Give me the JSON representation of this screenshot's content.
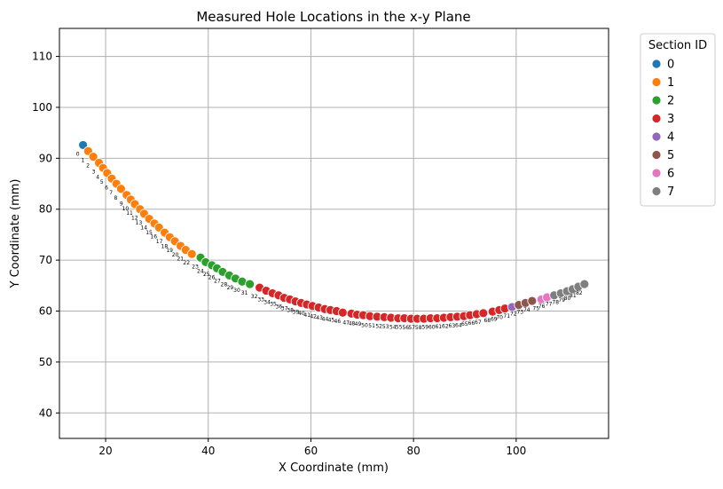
{
  "chart_data": {
    "type": "scatter",
    "title": "Measured Hole Locations in the x-y Plane",
    "xlabel": "X Coordinate (mm)",
    "ylabel": "Y Coordinate (mm)",
    "xlim": [
      11,
      118
    ],
    "ylim": [
      35,
      115.5
    ],
    "xticks": [
      20,
      40,
      60,
      80,
      100
    ],
    "yticks": [
      40,
      50,
      60,
      70,
      80,
      90,
      100,
      110
    ],
    "grid": true,
    "legend": {
      "title": "Section ID",
      "placement": "outside-top-right",
      "entries": [
        {
          "label": "0",
          "color": "#1f77b4"
        },
        {
          "label": "1",
          "color": "#ff7f0e"
        },
        {
          "label": "2",
          "color": "#2ca02c"
        },
        {
          "label": "3",
          "color": "#d62728"
        },
        {
          "label": "4",
          "color": "#9467bd"
        },
        {
          "label": "5",
          "color": "#8c564b"
        },
        {
          "label": "6",
          "color": "#e377c2"
        },
        {
          "label": "7",
          "color": "#7f7f7f"
        }
      ]
    },
    "points": [
      {
        "id": 0,
        "section": 0,
        "x": 15.6,
        "y": 92.6
      },
      {
        "id": 1,
        "section": 1,
        "x": 16.6,
        "y": 91.4
      },
      {
        "id": 2,
        "section": 1,
        "x": 17.6,
        "y": 90.3
      },
      {
        "id": 3,
        "section": 1,
        "x": 18.7,
        "y": 89.1
      },
      {
        "id": 4,
        "section": 1,
        "x": 19.5,
        "y": 88.1
      },
      {
        "id": 5,
        "section": 1,
        "x": 20.3,
        "y": 87.1
      },
      {
        "id": 6,
        "section": 1,
        "x": 21.2,
        "y": 86.0
      },
      {
        "id": 7,
        "section": 1,
        "x": 22.1,
        "y": 85.0
      },
      {
        "id": 8,
        "section": 1,
        "x": 23.0,
        "y": 84.0
      },
      {
        "id": 9,
        "section": 1,
        "x": 24.1,
        "y": 82.8
      },
      {
        "id": 10,
        "section": 1,
        "x": 24.9,
        "y": 81.9
      },
      {
        "id": 11,
        "section": 1,
        "x": 25.7,
        "y": 81.0
      },
      {
        "id": 12,
        "section": 1,
        "x": 26.7,
        "y": 80.0
      },
      {
        "id": 13,
        "section": 1,
        "x": 27.5,
        "y": 79.1
      },
      {
        "id": 14,
        "section": 1,
        "x": 28.5,
        "y": 78.1
      },
      {
        "id": 15,
        "section": 1,
        "x": 29.5,
        "y": 77.2
      },
      {
        "id": 16,
        "section": 1,
        "x": 30.4,
        "y": 76.4
      },
      {
        "id": 17,
        "section": 1,
        "x": 31.5,
        "y": 75.4
      },
      {
        "id": 18,
        "section": 1,
        "x": 32.5,
        "y": 74.5
      },
      {
        "id": 19,
        "section": 1,
        "x": 33.5,
        "y": 73.7
      },
      {
        "id": 20,
        "section": 1,
        "x": 34.6,
        "y": 72.8
      },
      {
        "id": 21,
        "section": 1,
        "x": 35.6,
        "y": 72.0
      },
      {
        "id": 22,
        "section": 1,
        "x": 36.8,
        "y": 71.2
      },
      {
        "id": 23,
        "section": 2,
        "x": 38.5,
        "y": 70.5
      },
      {
        "id": 24,
        "section": 2,
        "x": 39.5,
        "y": 69.6
      },
      {
        "id": 25,
        "section": 2,
        "x": 40.7,
        "y": 69.0
      },
      {
        "id": 26,
        "section": 2,
        "x": 41.7,
        "y": 68.4
      },
      {
        "id": 27,
        "section": 2,
        "x": 42.8,
        "y": 67.7
      },
      {
        "id": 28,
        "section": 2,
        "x": 44.1,
        "y": 67.0
      },
      {
        "id": 29,
        "section": 2,
        "x": 45.3,
        "y": 66.4
      },
      {
        "id": 30,
        "section": 2,
        "x": 46.6,
        "y": 65.8
      },
      {
        "id": 31,
        "section": 2,
        "x": 48.1,
        "y": 65.3
      },
      {
        "id": 32,
        "section": 3,
        "x": 50.0,
        "y": 64.6
      },
      {
        "id": 33,
        "section": 3,
        "x": 51.3,
        "y": 64.0
      },
      {
        "id": 34,
        "section": 3,
        "x": 52.5,
        "y": 63.5
      },
      {
        "id": 35,
        "section": 3,
        "x": 53.7,
        "y": 63.1
      },
      {
        "id": 36,
        "section": 3,
        "x": 54.8,
        "y": 62.6
      },
      {
        "id": 37,
        "section": 3,
        "x": 55.9,
        "y": 62.3
      },
      {
        "id": 38,
        "section": 3,
        "x": 57.0,
        "y": 61.9
      },
      {
        "id": 39,
        "section": 3,
        "x": 58.1,
        "y": 61.6
      },
      {
        "id": 40,
        "section": 3,
        "x": 59.2,
        "y": 61.3
      },
      {
        "id": 41,
        "section": 3,
        "x": 60.3,
        "y": 61.0
      },
      {
        "id": 42,
        "section": 3,
        "x": 61.5,
        "y": 60.7
      },
      {
        "id": 43,
        "section": 3,
        "x": 62.7,
        "y": 60.4
      },
      {
        "id": 44,
        "section": 3,
        "x": 63.8,
        "y": 60.2
      },
      {
        "id": 45,
        "section": 3,
        "x": 65.0,
        "y": 60.0
      },
      {
        "id": 46,
        "section": 3,
        "x": 66.2,
        "y": 59.7
      },
      {
        "id": 47,
        "section": 3,
        "x": 67.9,
        "y": 59.5
      },
      {
        "id": 48,
        "section": 3,
        "x": 69.0,
        "y": 59.3
      },
      {
        "id": 49,
        "section": 3,
        "x": 70.2,
        "y": 59.2
      },
      {
        "id": 50,
        "section": 3,
        "x": 71.5,
        "y": 59.0
      },
      {
        "id": 51,
        "section": 3,
        "x": 72.9,
        "y": 58.9
      },
      {
        "id": 52,
        "section": 3,
        "x": 74.3,
        "y": 58.8
      },
      {
        "id": 53,
        "section": 3,
        "x": 75.6,
        "y": 58.7
      },
      {
        "id": 54,
        "section": 3,
        "x": 77.0,
        "y": 58.6
      },
      {
        "id": 55,
        "section": 3,
        "x": 78.2,
        "y": 58.6
      },
      {
        "id": 56,
        "section": 3,
        "x": 79.5,
        "y": 58.5
      },
      {
        "id": 57,
        "section": 3,
        "x": 80.7,
        "y": 58.5
      },
      {
        "id": 58,
        "section": 3,
        "x": 82.0,
        "y": 58.5
      },
      {
        "id": 59,
        "section": 3,
        "x": 83.3,
        "y": 58.6
      },
      {
        "id": 60,
        "section": 3,
        "x": 84.6,
        "y": 58.6
      },
      {
        "id": 61,
        "section": 3,
        "x": 85.9,
        "y": 58.7
      },
      {
        "id": 62,
        "section": 3,
        "x": 87.2,
        "y": 58.8
      },
      {
        "id": 63,
        "section": 3,
        "x": 88.5,
        "y": 58.9
      },
      {
        "id": 64,
        "section": 3,
        "x": 89.8,
        "y": 59.0
      },
      {
        "id": 65,
        "section": 3,
        "x": 91.0,
        "y": 59.2
      },
      {
        "id": 66,
        "section": 3,
        "x": 92.3,
        "y": 59.4
      },
      {
        "id": 67,
        "section": 3,
        "x": 93.6,
        "y": 59.6
      },
      {
        "id": 68,
        "section": 3,
        "x": 95.4,
        "y": 59.9
      },
      {
        "id": 69,
        "section": 3,
        "x": 96.7,
        "y": 60.2
      },
      {
        "id": 70,
        "section": 3,
        "x": 97.8,
        "y": 60.5
      },
      {
        "id": 71,
        "section": 4,
        "x": 99.2,
        "y": 60.8
      },
      {
        "id": 72,
        "section": 5,
        "x": 100.5,
        "y": 61.2
      },
      {
        "id": 73,
        "section": 5,
        "x": 101.8,
        "y": 61.6
      },
      {
        "id": 74,
        "section": 5,
        "x": 103.1,
        "y": 62.0
      },
      {
        "id": 75,
        "section": 6,
        "x": 104.9,
        "y": 62.3
      },
      {
        "id": 76,
        "section": 6,
        "x": 106.0,
        "y": 62.7
      },
      {
        "id": 77,
        "section": 7,
        "x": 107.4,
        "y": 63.1
      },
      {
        "id": 78,
        "section": 7,
        "x": 108.7,
        "y": 63.5
      },
      {
        "id": 79,
        "section": 7,
        "x": 109.9,
        "y": 63.9
      },
      {
        "id": 80,
        "section": 7,
        "x": 111.0,
        "y": 64.3
      },
      {
        "id": 81,
        "section": 7,
        "x": 112.1,
        "y": 64.8
      },
      {
        "id": 82,
        "section": 7,
        "x": 113.3,
        "y": 65.3
      }
    ]
  }
}
